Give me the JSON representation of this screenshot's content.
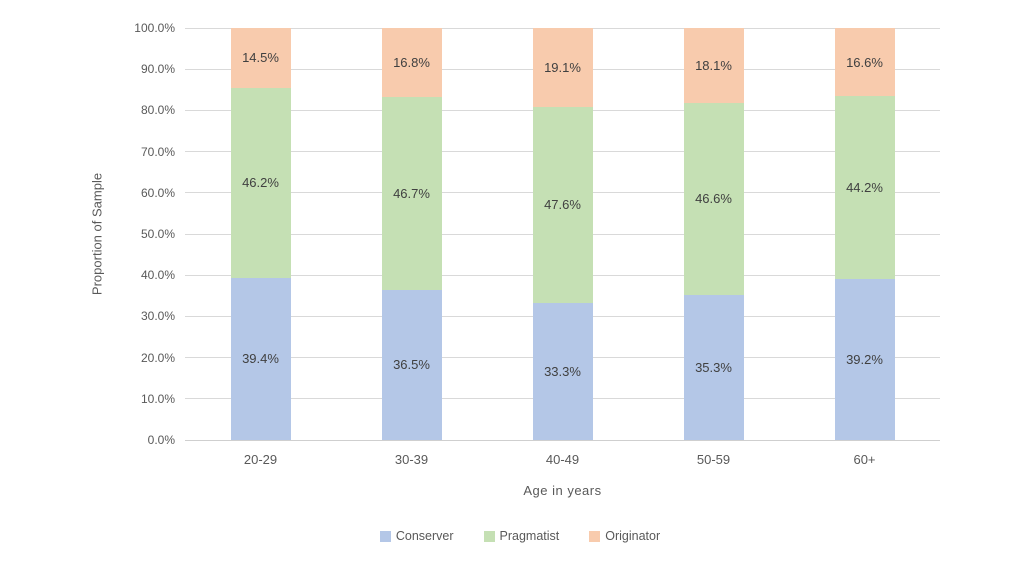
{
  "chart_data": {
    "type": "bar",
    "stacked": true,
    "stacked_to_100": true,
    "title": "",
    "xlabel": "Age  in years",
    "ylabel": "Proportion of Sample",
    "categories": [
      "20-29",
      "30-39",
      "40-49",
      "50-59",
      "60+"
    ],
    "series": [
      {
        "name": "Conserver",
        "color": "#b4c7e7",
        "values": [
          39.4,
          36.5,
          33.3,
          35.3,
          39.2
        ]
      },
      {
        "name": "Pragmatist",
        "color": "#c5e0b4",
        "values": [
          46.2,
          46.7,
          47.6,
          46.6,
          44.2
        ]
      },
      {
        "name": "Originator",
        "color": "#f8cbad",
        "values": [
          14.5,
          16.8,
          19.1,
          18.1,
          16.6
        ]
      }
    ],
    "data_labels": [
      [
        "39.4%",
        "36.5%",
        "33.3%",
        "35.3%",
        "39.2%"
      ],
      [
        "46.2%",
        "46.7%",
        "47.6%",
        "46.6%",
        "44.2%"
      ],
      [
        "14.5%",
        "16.8%",
        "19.1%",
        "18.1%",
        "16.6%"
      ]
    ],
    "ylim": [
      0,
      100
    ],
    "ytick_step": 10,
    "yticks": [
      "0.0%",
      "10.0%",
      "20.0%",
      "30.0%",
      "40.0%",
      "50.0%",
      "60.0%",
      "70.0%",
      "80.0%",
      "90.0%",
      "100.0%"
    ],
    "grid": true,
    "legend_position": "bottom"
  },
  "style": {
    "gridline_color": "#d9d9d9",
    "axis_line_color": "#cfcfcf",
    "tick_text_color": "#595959",
    "data_label_color": "#404040",
    "background": "#ffffff"
  }
}
